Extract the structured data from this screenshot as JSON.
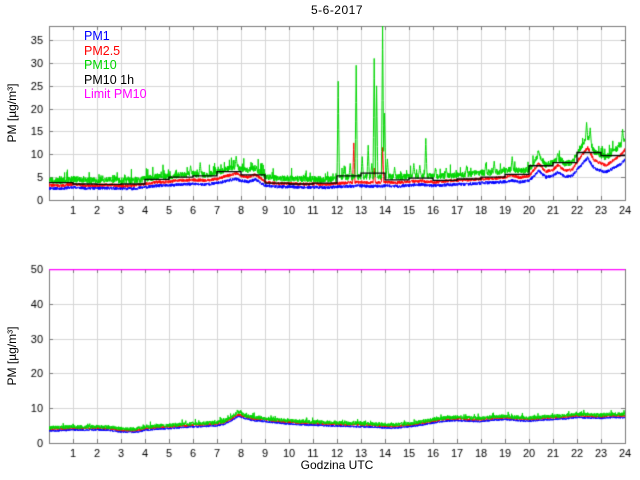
{
  "figure": {
    "title": "5-6-2017",
    "background": "#ffffff"
  },
  "chart_data": [
    {
      "type": "line",
      "title": "5-6-2017",
      "xlabel": "",
      "ylabel": "PM [µg/m³]",
      "xlim": [
        0,
        24
      ],
      "ylim": [
        0,
        38.1
      ],
      "xticks": [
        1,
        2,
        3,
        4,
        5,
        6,
        7,
        8,
        9,
        10,
        11,
        12,
        13,
        14,
        15,
        16,
        17,
        18,
        19,
        20,
        21,
        22,
        23,
        24
      ],
      "yticks": [
        0,
        5,
        10,
        15,
        20,
        25,
        30,
        35
      ],
      "grid": true,
      "grid_color": "#d6d6d6",
      "axis_color": "#7a7a7a",
      "legend": {
        "position": "top-left",
        "entries": [
          {
            "label": "PM1",
            "color": "#0000ff"
          },
          {
            "label": "PM2.5",
            "color": "#ff0000"
          },
          {
            "label": "PM10",
            "color": "#00d500"
          },
          {
            "label": "PM10 1h",
            "color": "#000000"
          },
          {
            "label": "Limit PM10",
            "color": "#ff00ff"
          }
        ]
      },
      "series": [
        {
          "name": "PM1",
          "type": "noisy",
          "color": "#0000ff",
          "noise": 0.35,
          "burst": 0,
          "seed": 11,
          "x": [
            0,
            0.5,
            1,
            1.5,
            2,
            2.5,
            3,
            3.5,
            4,
            4.5,
            5,
            5.5,
            6,
            6.5,
            7,
            7.4,
            7.8,
            8,
            8.3,
            8.6,
            8.8,
            9,
            9.5,
            10,
            10.5,
            11,
            11.5,
            12,
            12.5,
            13,
            13.5,
            14,
            14.5,
            15,
            15.5,
            16,
            16.5,
            17,
            17.5,
            18,
            18.5,
            19,
            19.3,
            19.6,
            20,
            20.2,
            20.4,
            20.7,
            21,
            21.2,
            21.5,
            21.8,
            22,
            22.2,
            22.45,
            22.7,
            23,
            23.2,
            23.5,
            23.8,
            24
          ],
          "y": [
            2.6,
            2.5,
            2.8,
            2.6,
            2.6,
            2.6,
            2.5,
            2.5,
            2.8,
            3.1,
            3.2,
            3.4,
            3.5,
            3.4,
            3.7,
            4.2,
            4.6,
            4.2,
            4.0,
            4.5,
            3.8,
            3.2,
            2.9,
            2.9,
            2.8,
            2.8,
            2.7,
            2.9,
            3.0,
            3.1,
            3.0,
            3.1,
            3.0,
            3.2,
            3.4,
            3.1,
            3.3,
            3.4,
            3.5,
            3.7,
            3.8,
            4.0,
            4.3,
            3.9,
            4.2,
            5.2,
            6.4,
            5.0,
            5.3,
            6.1,
            5.1,
            5.3,
            6.6,
            7.8,
            9.2,
            7.0,
            6.4,
            6.1,
            6.9,
            7.8,
            8.8
          ],
          "spikes": []
        },
        {
          "name": "PM2.5",
          "type": "noisy",
          "color": "#ff0000",
          "noise": 0.35,
          "burst": 0,
          "seed": 22,
          "x": [
            0,
            0.5,
            1,
            1.5,
            2,
            2.5,
            3,
            3.5,
            4,
            4.5,
            5,
            5.5,
            6,
            6.5,
            7,
            7.4,
            7.8,
            8,
            8.3,
            8.6,
            8.8,
            9,
            9.5,
            10,
            10.5,
            11,
            11.5,
            12,
            12.5,
            13,
            13.5,
            14,
            14.5,
            15,
            15.5,
            16,
            16.5,
            17,
            17.5,
            18,
            18.5,
            19,
            19.3,
            19.6,
            20,
            20.2,
            20.4,
            20.7,
            21,
            21.2,
            21.5,
            21.8,
            22,
            22.2,
            22.45,
            22.7,
            23,
            23.2,
            23.5,
            23.8,
            24
          ],
          "y": [
            3.3,
            3.1,
            3.5,
            3.2,
            3.2,
            3.3,
            3.1,
            3.1,
            3.5,
            3.9,
            4.0,
            4.3,
            4.4,
            4.3,
            4.6,
            5.3,
            5.8,
            5.3,
            5.0,
            5.6,
            4.8,
            4.0,
            3.6,
            3.6,
            3.5,
            3.5,
            3.4,
            3.6,
            3.8,
            3.9,
            3.8,
            3.9,
            3.8,
            4.0,
            4.2,
            3.9,
            4.1,
            4.3,
            4.4,
            4.6,
            4.7,
            5.0,
            5.4,
            4.9,
            5.3,
            6.5,
            8.0,
            6.2,
            6.6,
            7.6,
            6.4,
            6.6,
            8.3,
            9.8,
            11.5,
            8.8,
            8.0,
            7.6,
            8.6,
            9.8,
            11.0
          ],
          "spikes": [
            [
              12.7,
              12.5
            ],
            [
              13.55,
              7.0
            ],
            [
              13.9,
              11.5
            ]
          ]
        },
        {
          "name": "PM10",
          "type": "noisy",
          "color": "#00d500",
          "noise": 0.7,
          "burst": 2.2,
          "seed": 33,
          "x": [
            0,
            0.5,
            1,
            1.5,
            2,
            2.5,
            3,
            3.5,
            4,
            4.5,
            5,
            5.5,
            6,
            6.5,
            7,
            7.4,
            7.8,
            8,
            8.3,
            8.6,
            8.8,
            9,
            9.5,
            10,
            10.5,
            11,
            11.5,
            12,
            12.5,
            13,
            13.5,
            14,
            14.5,
            15,
            15.5,
            16,
            16.5,
            17,
            17.5,
            18,
            18.5,
            19,
            19.3,
            19.6,
            20,
            20.2,
            20.4,
            20.7,
            21,
            21.2,
            21.5,
            21.8,
            22,
            22.2,
            22.45,
            22.7,
            23,
            23.2,
            23.5,
            23.8,
            24
          ],
          "y": [
            4.4,
            4.2,
            4.6,
            4.3,
            4.3,
            4.4,
            4.2,
            4.2,
            4.6,
            5.1,
            5.2,
            5.5,
            5.7,
            5.5,
            5.9,
            6.7,
            7.3,
            6.7,
            6.4,
            7.0,
            6.1,
            5.2,
            4.7,
            4.7,
            4.6,
            4.6,
            4.5,
            4.7,
            5.0,
            5.1,
            5.0,
            5.1,
            5.0,
            5.2,
            5.4,
            5.1,
            5.3,
            5.5,
            5.7,
            5.9,
            6.0,
            6.4,
            6.8,
            6.2,
            6.7,
            8.1,
            9.8,
            7.7,
            8.2,
            9.3,
            8.0,
            8.2,
            10.1,
            11.9,
            13.8,
            10.7,
            9.8,
            9.3,
            10.5,
            11.9,
            13.3
          ],
          "spikes": [
            [
              5.9,
              7.5
            ],
            [
              6.3,
              8.2
            ],
            [
              7.8,
              9.6
            ],
            [
              12.05,
              26
            ],
            [
              12.3,
              7.5
            ],
            [
              12.55,
              8
            ],
            [
              12.8,
              29.5
            ],
            [
              13.05,
              9.5
            ],
            [
              13.3,
              12
            ],
            [
              13.45,
              8
            ],
            [
              13.55,
              31
            ],
            [
              13.65,
              25
            ],
            [
              13.9,
              38.5
            ],
            [
              13.98,
              20
            ],
            [
              14.1,
              9
            ],
            [
              14.4,
              7.2
            ],
            [
              15.2,
              8
            ],
            [
              15.45,
              7.6
            ],
            [
              15.7,
              13.5
            ],
            [
              16.1,
              7
            ],
            [
              16.55,
              7
            ],
            [
              17.4,
              7.5
            ],
            [
              18.2,
              8
            ],
            [
              18.55,
              8.5
            ],
            [
              19.3,
              9.5
            ],
            [
              20.4,
              10.8
            ],
            [
              21.2,
              10.2
            ],
            [
              22.4,
              17
            ],
            [
              22.55,
              15.8
            ],
            [
              23.9,
              15.5
            ]
          ]
        },
        {
          "name": "PM10 1h",
          "type": "step",
          "color": "#000000",
          "hourly": [
            3.8,
            3.5,
            3.4,
            3.5,
            4.5,
            5.0,
            5.3,
            6.2,
            5.5,
            3.7,
            3.5,
            3.7,
            5.3,
            5.9,
            4.4,
            4.8,
            4.3,
            4.6,
            5.0,
            5.6,
            7.5,
            8.2,
            10.4,
            9.7
          ]
        },
        {
          "name": "Limit PM10",
          "type": "hline",
          "color": "#ff00ff",
          "value": 50
        }
      ]
    },
    {
      "type": "line",
      "title": "",
      "xlabel": "Godzina UTC",
      "ylabel": "PM [µg/m³]",
      "xlim": [
        0,
        24
      ],
      "ylim": [
        0,
        50
      ],
      "xticks": [
        1,
        2,
        3,
        4,
        5,
        6,
        7,
        8,
        9,
        10,
        11,
        12,
        13,
        14,
        15,
        16,
        17,
        18,
        19,
        20,
        21,
        22,
        23,
        24
      ],
      "yticks": [
        0,
        10,
        20,
        30,
        40,
        50
      ],
      "grid": true,
      "grid_color": "#d6d6d6",
      "axis_color": "#7a7a7a",
      "series": [
        {
          "name": "PM1",
          "type": "noisy",
          "color": "#0000ff",
          "noise": 0.3,
          "burst": 0,
          "seed": 44,
          "x": [
            0,
            0.5,
            1,
            1.5,
            2,
            2.5,
            3,
            3.3,
            3.7,
            4,
            4.5,
            5,
            5.5,
            6,
            6.5,
            7,
            7.3,
            7.6,
            7.9,
            8.2,
            8.5,
            9,
            9.5,
            10,
            10.5,
            11,
            11.5,
            12,
            12.5,
            13,
            13.5,
            14,
            14.3,
            14.7,
            15,
            15.5,
            16,
            16.5,
            17,
            17.5,
            18,
            18.5,
            19,
            19.5,
            20,
            20.5,
            21,
            21.5,
            22,
            22.5,
            23,
            23.5,
            24
          ],
          "y": [
            3.5,
            3.6,
            3.8,
            3.7,
            3.8,
            3.7,
            3.2,
            3.1,
            3.2,
            3.7,
            4.0,
            4.2,
            4.4,
            4.7,
            4.8,
            5.0,
            5.4,
            6.5,
            7.7,
            7.0,
            6.5,
            6.2,
            5.8,
            5.5,
            5.3,
            5.2,
            5.0,
            4.9,
            4.8,
            4.7,
            4.6,
            4.4,
            4.3,
            4.5,
            4.7,
            5.2,
            5.8,
            6.3,
            6.5,
            6.3,
            6.2,
            6.6,
            6.8,
            6.5,
            6.3,
            6.6,
            6.8,
            7.0,
            7.4,
            7.2,
            7.1,
            7.4,
            7.3
          ],
          "spikes": []
        },
        {
          "name": "PM2.5",
          "type": "noisy",
          "color": "#ff0000",
          "noise": 0.3,
          "burst": 0,
          "seed": 55,
          "x": [
            0,
            0.5,
            1,
            1.5,
            2,
            2.5,
            3,
            3.3,
            3.7,
            4,
            4.5,
            5,
            5.5,
            6,
            6.5,
            7,
            7.3,
            7.6,
            7.9,
            8.2,
            8.5,
            9,
            9.5,
            10,
            10.5,
            11,
            11.5,
            12,
            12.5,
            13,
            13.5,
            14,
            14.3,
            14.7,
            15,
            15.5,
            16,
            16.5,
            17,
            17.5,
            18,
            18.5,
            19,
            19.5,
            20,
            20.5,
            21,
            21.5,
            22,
            22.5,
            23,
            23.5,
            24
          ],
          "y": [
            4.0,
            4.1,
            4.3,
            4.2,
            4.3,
            4.2,
            3.7,
            3.6,
            3.7,
            4.2,
            4.5,
            4.7,
            4.9,
            5.2,
            5.3,
            5.5,
            5.9,
            7.0,
            8.2,
            7.5,
            7.0,
            6.7,
            6.3,
            6.0,
            5.8,
            5.7,
            5.5,
            5.4,
            5.3,
            5.2,
            5.1,
            4.9,
            4.8,
            5.0,
            5.2,
            5.7,
            6.3,
            6.8,
            7.0,
            6.8,
            6.7,
            7.1,
            7.3,
            7.0,
            6.8,
            7.1,
            7.3,
            7.5,
            7.9,
            7.7,
            7.6,
            7.9,
            7.8
          ],
          "spikes": []
        },
        {
          "name": "PM10",
          "type": "noisy",
          "color": "#00d500",
          "noise": 0.55,
          "burst": 1.0,
          "seed": 66,
          "x": [
            0,
            0.5,
            1,
            1.5,
            2,
            2.5,
            3,
            3.3,
            3.7,
            4,
            4.5,
            5,
            5.5,
            6,
            6.5,
            7,
            7.3,
            7.6,
            7.9,
            8.2,
            8.5,
            9,
            9.5,
            10,
            10.5,
            11,
            11.5,
            12,
            12.5,
            13,
            13.5,
            14,
            14.3,
            14.7,
            15,
            15.5,
            16,
            16.5,
            17,
            17.5,
            18,
            18.5,
            19,
            19.5,
            20,
            20.5,
            21,
            21.5,
            22,
            22.5,
            23,
            23.5,
            24
          ],
          "y": [
            4.4,
            4.5,
            4.7,
            4.6,
            4.7,
            4.6,
            4.1,
            4.0,
            4.1,
            4.6,
            4.9,
            5.1,
            5.3,
            5.6,
            5.7,
            5.9,
            6.3,
            7.4,
            9.0,
            7.9,
            7.4,
            7.1,
            6.7,
            6.4,
            6.2,
            6.1,
            5.9,
            5.8,
            5.7,
            5.6,
            5.5,
            5.3,
            5.2,
            5.4,
            5.6,
            6.1,
            6.7,
            7.2,
            7.4,
            7.2,
            7.1,
            7.5,
            7.7,
            7.4,
            7.2,
            7.5,
            7.7,
            7.9,
            8.3,
            8.1,
            8.0,
            8.3,
            8.2
          ],
          "spikes": []
        },
        {
          "name": "Limit PM10",
          "type": "hline",
          "color": "#ff00ff",
          "value": 50
        }
      ]
    }
  ]
}
